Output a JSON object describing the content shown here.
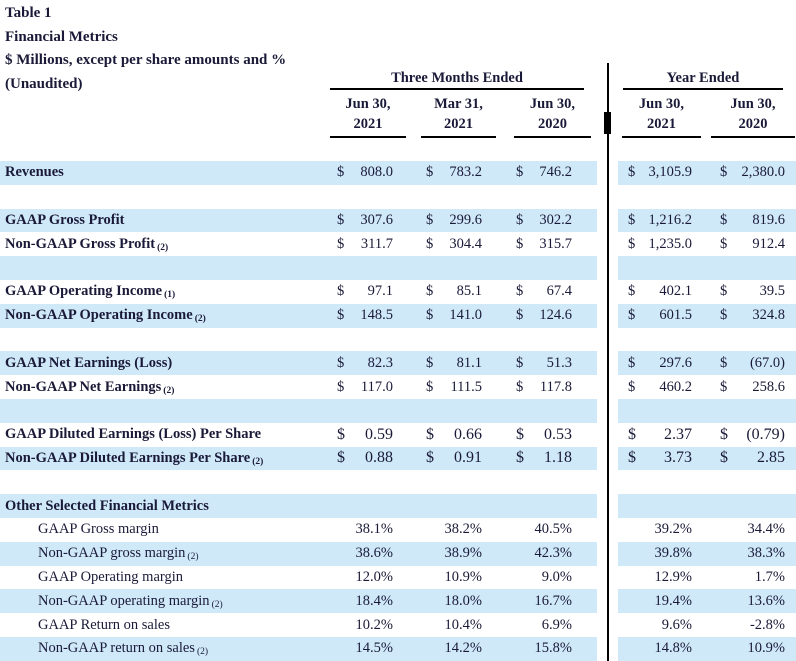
{
  "title": {
    "line1": "Table 1",
    "line2": "Financial Metrics",
    "line3": "$ Millions, except per share amounts and %",
    "line4": "(Unaudited)"
  },
  "currency": "$",
  "colors": {
    "row_highlight": "#cfe9f9",
    "text": "#1a1a38",
    "divider": "#000000"
  },
  "header": {
    "group_left": "Three Months Ended",
    "group_right": "Year Ended",
    "columns": [
      {
        "month": "Jun 30,",
        "year": "2021"
      },
      {
        "month": "Mar 31,",
        "year": "2021"
      },
      {
        "month": "Jun 30,",
        "year": "2020"
      },
      {
        "month": "Jun 30,",
        "year": "2021"
      },
      {
        "month": "Jun 30,",
        "year": "2020"
      }
    ]
  },
  "rows": [
    {
      "label": "Revenues",
      "values": [
        "808.0",
        "783.2",
        "746.2",
        "3,105.9",
        "2,380.0"
      ]
    },
    {
      "label": ""
    },
    {
      "label": "GAAP Gross Profit",
      "values": [
        "307.6",
        "299.6",
        "302.2",
        "1,216.2",
        "819.6"
      ]
    },
    {
      "label": "Non-GAAP Gross Profit",
      "footnote": "(2)",
      "values": [
        "311.7",
        "304.4",
        "315.7",
        "1,235.0",
        "912.4"
      ]
    },
    {
      "label": ""
    },
    {
      "label": "GAAP Operating Income",
      "footnote": "(1)",
      "values": [
        "97.1",
        "85.1",
        "67.4",
        "402.1",
        "39.5"
      ]
    },
    {
      "label": "Non-GAAP Operating Income",
      "footnote": "(2)",
      "values": [
        "148.5",
        "141.0",
        "124.6",
        "601.5",
        "324.8"
      ]
    },
    {
      "label": ""
    },
    {
      "label": "GAAP Net Earnings (Loss)",
      "values": [
        "82.3",
        "81.1",
        "51.3",
        "297.6",
        "(67.0)"
      ]
    },
    {
      "label": "Non-GAAP Net Earnings",
      "footnote": "(2)",
      "values": [
        "117.0",
        "111.5",
        "117.8",
        "460.2",
        "258.6"
      ]
    },
    {
      "label": ""
    },
    {
      "label": "GAAP Diluted Earnings (Loss) Per Share",
      "values": [
        "0.59",
        "0.66",
        "0.53",
        "2.37",
        "(0.79)"
      ]
    },
    {
      "label": "Non-GAAP Diluted Earnings Per Share",
      "footnote": "(2)",
      "values": [
        "0.88",
        "0.91",
        "1.18",
        "3.73",
        "2.85"
      ]
    },
    {
      "label": ""
    },
    {
      "label": "Other Selected Financial Metrics"
    },
    {
      "label": "GAAP Gross margin",
      "values": [
        "38.1%",
        "38.2%",
        "40.5%",
        "39.2%",
        "34.4%"
      ]
    },
    {
      "label": "Non-GAAP gross margin",
      "footnote": "(2)",
      "values": [
        "38.6%",
        "38.9%",
        "42.3%",
        "39.8%",
        "38.3%"
      ]
    },
    {
      "label": "GAAP Operating margin",
      "values": [
        "12.0%",
        "10.9%",
        "9.0%",
        "12.9%",
        "1.7%"
      ]
    },
    {
      "label": "Non-GAAP operating margin",
      "footnote": "(2)",
      "values": [
        "18.4%",
        "18.0%",
        "16.7%",
        "19.4%",
        "13.6%"
      ]
    },
    {
      "label": "GAAP Return on sales",
      "values": [
        "10.2%",
        "10.4%",
        "6.9%",
        "9.6%",
        "-2.8%"
      ]
    },
    {
      "label": "Non-GAAP return on sales",
      "footnote": "(2)",
      "values": [
        "14.5%",
        "14.2%",
        "15.8%",
        "14.8%",
        "10.9%"
      ]
    }
  ]
}
